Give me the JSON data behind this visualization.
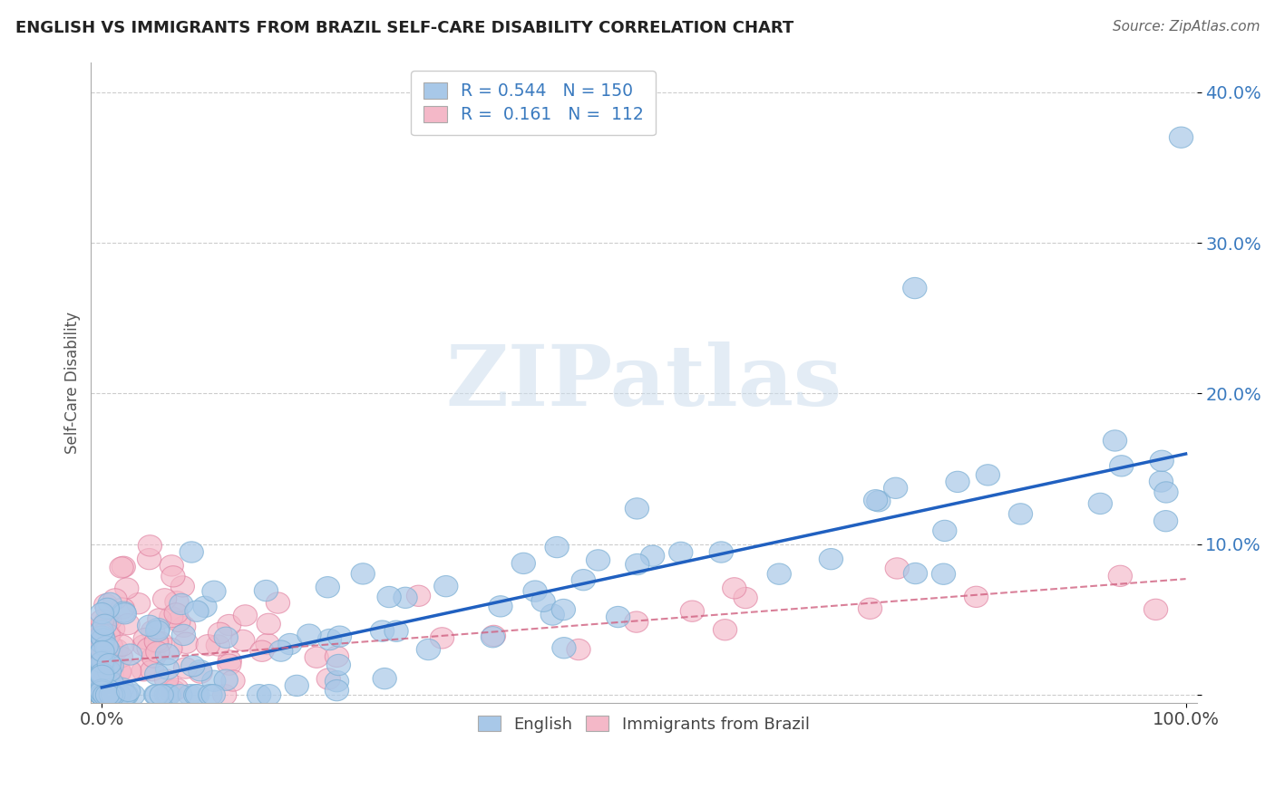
{
  "title": "ENGLISH VS IMMIGRANTS FROM BRAZIL SELF-CARE DISABILITY CORRELATION CHART",
  "source": "Source: ZipAtlas.com",
  "ylabel": "Self-Care Disability",
  "xlim": [
    -0.01,
    1.01
  ],
  "ylim": [
    -0.005,
    0.42
  ],
  "yticks": [
    0.0,
    0.1,
    0.2,
    0.3,
    0.4
  ],
  "grid_color": "#cccccc",
  "background_color": "#ffffff",
  "english_color": "#a8c8e8",
  "english_edge_color": "#7bafd4",
  "brazil_color": "#f4b8c8",
  "brazil_edge_color": "#e080a0",
  "english_line_color": "#2060c0",
  "brazil_line_color": "#d06080",
  "legend_r_english": "0.544",
  "legend_n_english": "150",
  "legend_r_brazil": "0.161",
  "legend_n_brazil": "112",
  "watermark_text": "ZIPatlas",
  "eng_slope": 0.155,
  "eng_intercept": 0.005,
  "bra_slope": 0.055,
  "bra_intercept": 0.022
}
